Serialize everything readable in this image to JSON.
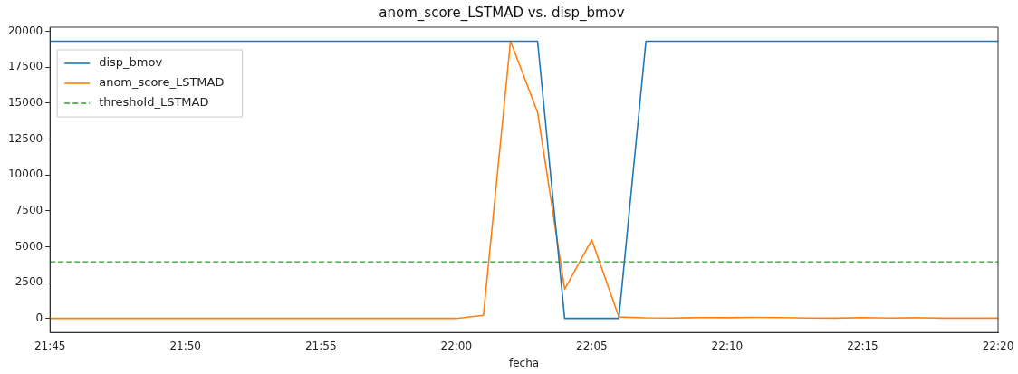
{
  "chart_data": {
    "type": "line",
    "title": "anom_score_LSTMAD vs. disp_bmov",
    "xlabel": "fecha",
    "x": [
      21.75,
      21.766667,
      21.783333,
      21.8,
      21.816667,
      21.833333,
      21.85,
      21.866667,
      21.883333,
      21.9,
      21.916667,
      21.933333,
      21.95,
      21.966667,
      21.983333,
      22,
      22.016667,
      22.033333,
      22.05,
      22.066667,
      22.083333,
      22.1,
      22.116667,
      22.133333,
      22.15,
      22.166667,
      22.183333,
      22.2,
      22.216667,
      22.233333,
      22.25,
      22.266667,
      22.283333,
      22.3,
      22.316667,
      22.333333
    ],
    "series": [
      {
        "name": "disp_bmov",
        "color": "#1f77b4",
        "values": [
          19320,
          19320,
          19320,
          19320,
          19320,
          19320,
          19320,
          19320,
          19320,
          19320,
          19320,
          19320,
          19320,
          19320,
          19320,
          19320,
          19320,
          19320,
          19320,
          0,
          0,
          0,
          19320,
          19320,
          19320,
          19320,
          19320,
          19320,
          19320,
          19320,
          19320,
          19320,
          19320,
          19320,
          19320,
          19320
        ]
      },
      {
        "name": "anom_score_LSTMAD",
        "color": "#ff7f0e",
        "values": [
          0,
          0,
          0,
          0,
          0,
          0,
          0,
          0,
          0,
          0,
          0,
          0,
          0,
          0,
          0,
          0,
          220,
          19320,
          14370,
          2040,
          5480,
          100,
          40,
          30,
          60,
          50,
          70,
          60,
          30,
          20,
          60,
          30,
          50,
          20,
          20,
          20
        ]
      }
    ],
    "ref_lines": [
      {
        "axis": "y",
        "value": 3950,
        "label": "threshold_LSTMAD",
        "color": "#2ca02c",
        "line_style": "dashed"
      }
    ],
    "xlim": [
      21.75,
      22.333333
    ],
    "xticks": [
      {
        "value": 21.75,
        "label": "21:45"
      },
      {
        "value": 21.833333,
        "label": "21:50"
      },
      {
        "value": 21.916667,
        "label": "21:55"
      },
      {
        "value": 22,
        "label": "22:00"
      },
      {
        "value": 22.083333,
        "label": "22:05"
      },
      {
        "value": 22.166667,
        "label": "22:10"
      },
      {
        "value": 22.25,
        "label": "22:15"
      },
      {
        "value": 22.333333,
        "label": "22:20"
      }
    ],
    "ylim": [
      -980,
      20300
    ],
    "yticks": [
      0,
      2500,
      5000,
      7500,
      10000,
      12500,
      15000,
      17500,
      20000
    ],
    "grid": false,
    "legend": "top left",
    "marker": "none",
    "line_style": "solid"
  }
}
